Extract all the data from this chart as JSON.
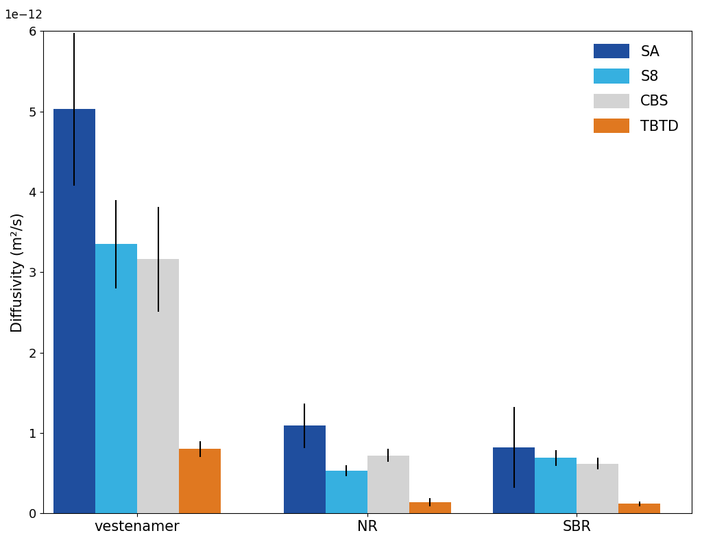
{
  "ylabel": "Diffusivity (m²/s)",
  "groups": [
    "vestenamer",
    "NR",
    "SBR"
  ],
  "series": [
    "SA",
    "S8",
    "CBS",
    "TBTD"
  ],
  "colors": [
    "#1f4e9e",
    "#36b0e0",
    "#d3d3d3",
    "#e07820"
  ],
  "values": [
    [
      5.03e-12,
      3.35e-12,
      3.16e-12,
      8e-13
    ],
    [
      1.09e-12,
      5.3e-13,
      7.2e-13,
      1.4e-13
    ],
    [
      8.2e-13,
      6.9e-13,
      6.2e-13,
      1.2e-13
    ]
  ],
  "errors": [
    [
      9.5e-13,
      5.5e-13,
      6.5e-13,
      1e-13
    ],
    [
      2.8e-13,
      7e-14,
      8e-14,
      5e-14
    ],
    [
      5e-13,
      1e-13,
      7e-14,
      3e-14
    ]
  ],
  "ylim": [
    0,
    6e-12
  ],
  "yticks": [
    0,
    1e-12,
    2e-12,
    3e-12,
    4e-12,
    5e-12,
    6e-12
  ],
  "ytick_labels": [
    "0",
    "1",
    "2",
    "3",
    "4",
    "5",
    "6"
  ],
  "bar_width": 0.2,
  "group_centers": [
    0.45,
    1.55,
    2.55
  ],
  "xlim": [
    0.0,
    3.1
  ],
  "figsize": [
    10.24,
    7.94
  ],
  "dpi": 100,
  "ylabel_fontsize": 15,
  "xtick_fontsize": 15,
  "ytick_fontsize": 13,
  "legend_fontsize": 15
}
